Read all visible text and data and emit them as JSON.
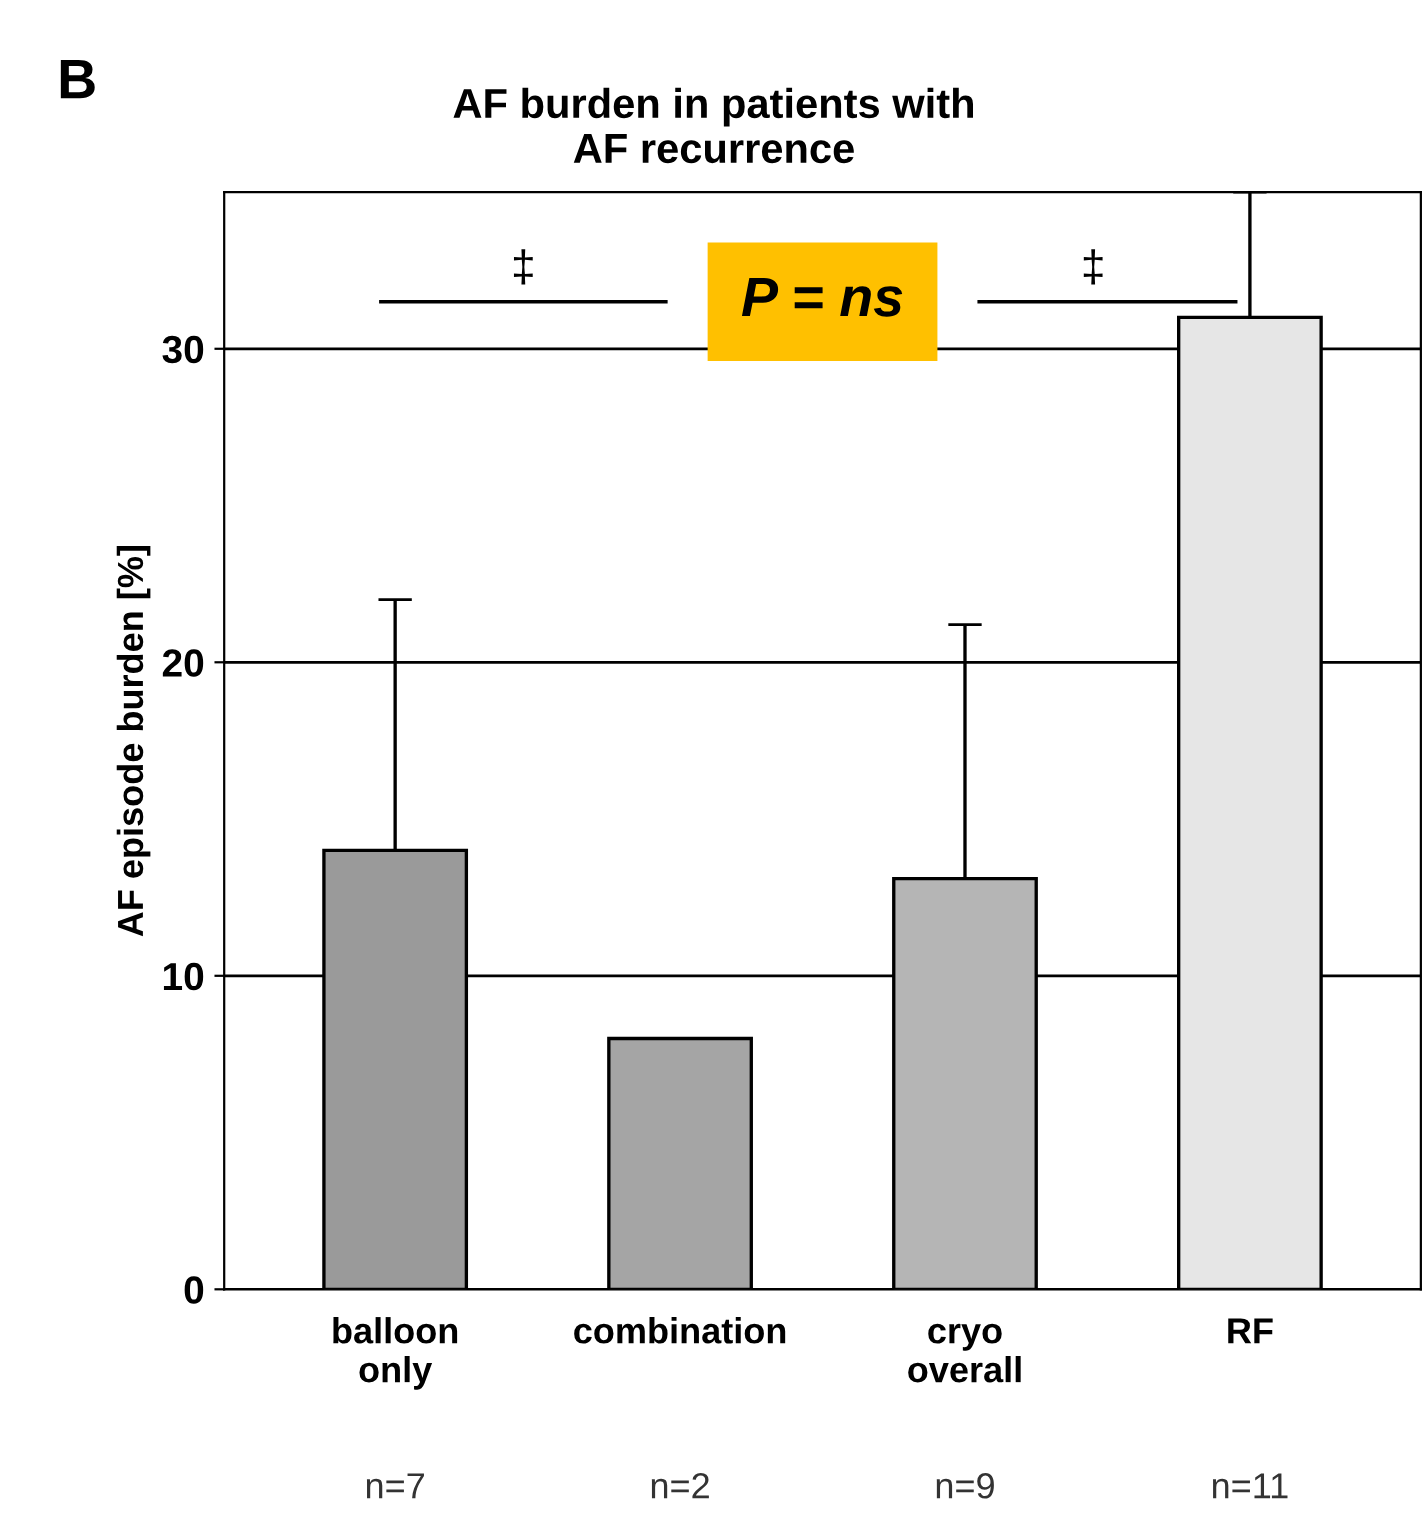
{
  "chart_data": {
    "type": "bar",
    "title": "AF burden in patients with\nAF recurrence",
    "ylabel": "AF episode burden [%]",
    "categories": [
      "balloon\nonly",
      "combination",
      "cryo\noverall",
      "RF"
    ],
    "values": [
      14,
      8,
      13.1,
      31
    ],
    "errors": [
      [
        14,
        22
      ],
      null,
      [
        13.1,
        21.2
      ],
      [
        31,
        35
      ]
    ],
    "colors": [
      "#9a9a9a",
      "#a5a5a5",
      "#b5b5b5",
      "#e6e6e6"
    ],
    "ylim": [
      0,
      35
    ],
    "yticks": [
      0,
      10,
      20,
      30
    ],
    "grid": "y",
    "annotations": [
      "B",
      "‡",
      "‡",
      "P = ns",
      "n=7",
      "n=2",
      "n=9",
      "n=11"
    ]
  }
}
